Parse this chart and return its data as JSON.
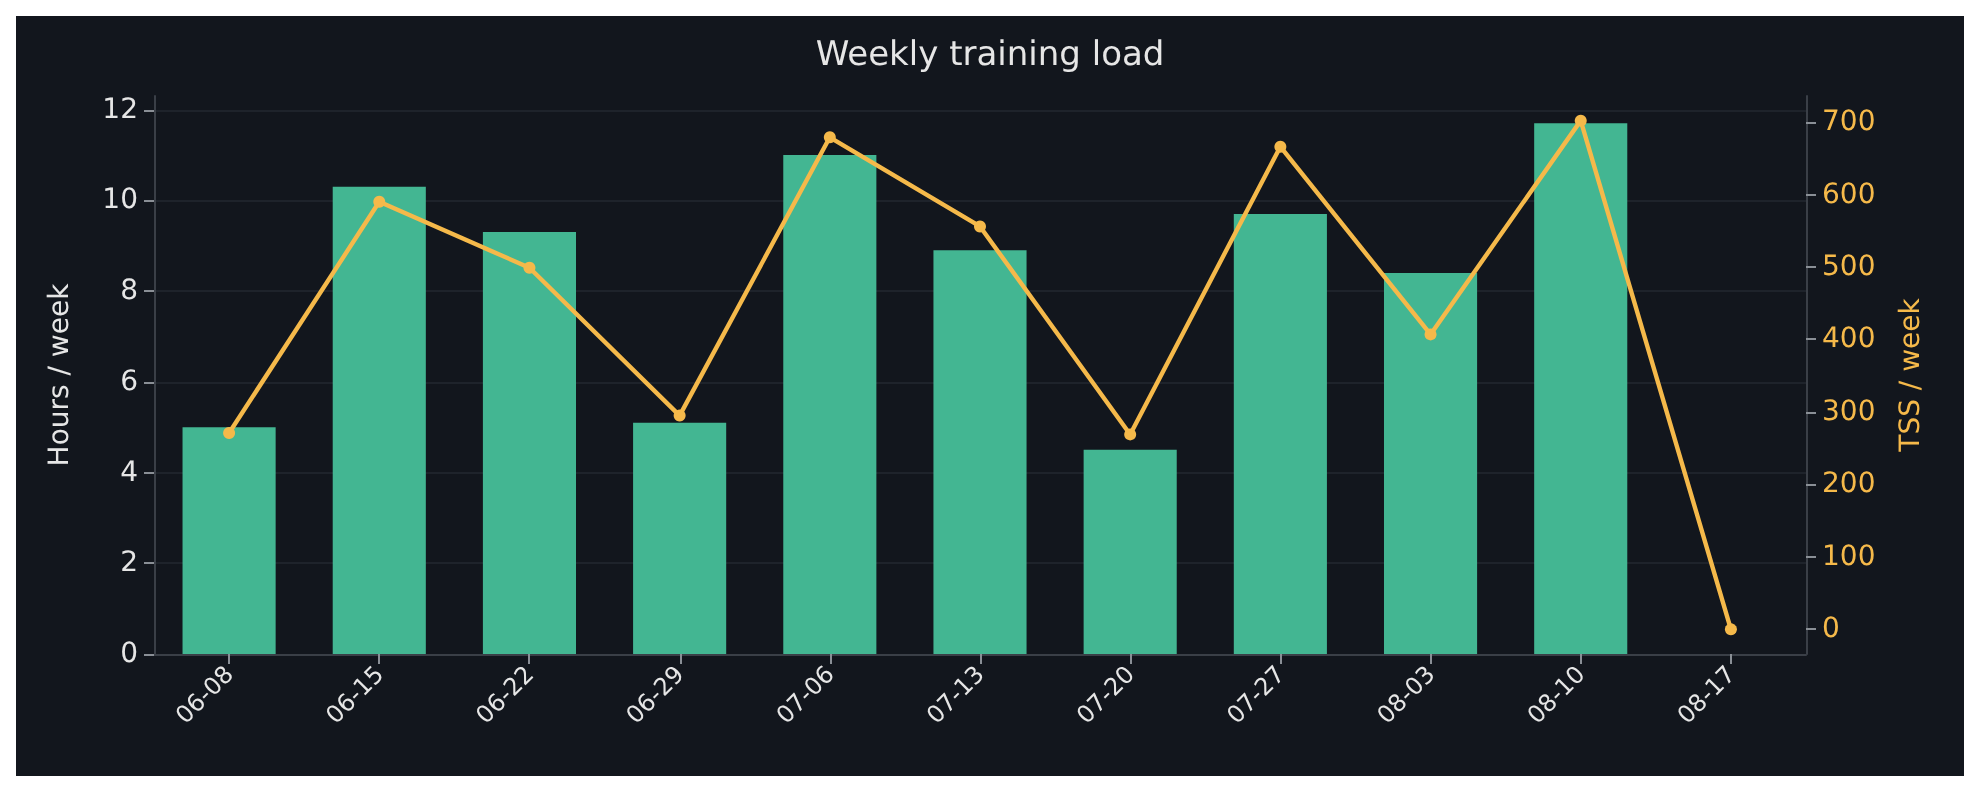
{
  "chart_data": {
    "type": "bar",
    "title": "Weekly training load",
    "ylabel": "Hours / week",
    "y2label": "TSS / week",
    "categories": [
      "06-08",
      "06-15",
      "06-22",
      "06-29",
      "07-06",
      "07-13",
      "07-20",
      "07-27",
      "08-03",
      "08-10",
      "08-17"
    ],
    "series": [
      {
        "color": "#43b692",
        "values": [
          5.0,
          10.3,
          9.3,
          5.1,
          11.0,
          8.9,
          4.5,
          9.7,
          8.4,
          11.7,
          0
        ]
      },
      {
        "type": "line",
        "axis": "y2",
        "color": "#f5b94a",
        "values": [
          271,
          590,
          499,
          295,
          679,
          556,
          269,
          666,
          407,
          702,
          0
        ]
      }
    ],
    "ylim": [
      0,
      12.3
    ],
    "yticks": [
      0,
      2,
      4,
      6,
      8,
      10,
      12
    ],
    "y2lim": [
      -34,
      736
    ],
    "y2ticks": [
      0,
      100,
      200,
      300,
      400,
      500,
      600,
      700
    ],
    "grid": "y",
    "marker": "circle",
    "line_style": "solid"
  }
}
